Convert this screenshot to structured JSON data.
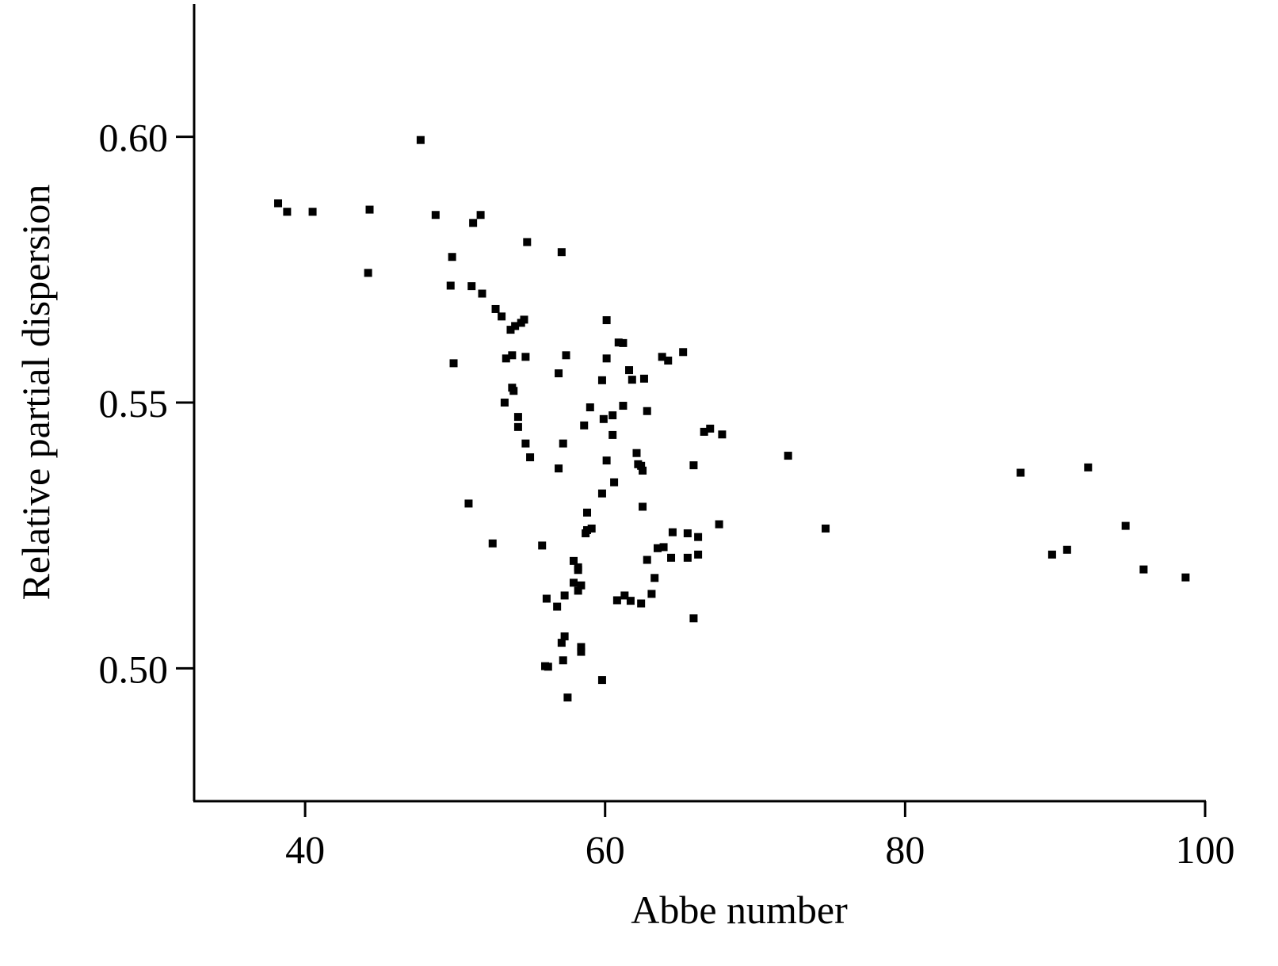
{
  "chart_data": {
    "type": "scatter",
    "xlabel": "Abbe number",
    "ylabel": "Relative partial dispersion",
    "color": "#000000",
    "x": [
      38.2,
      38.8,
      40.5,
      44.3,
      47.7,
      44.2,
      48.7,
      51.7,
      51.2,
      54.8,
      57.1,
      49.8,
      49.7,
      51.1,
      51.8,
      52.7,
      53.1,
      53.7,
      54.0,
      54.4,
      54.6,
      60.1,
      60.9,
      61.2,
      49.9,
      53.4,
      53.8,
      54.7,
      57.4,
      56.9,
      60.1,
      59.8,
      61.6,
      61.8,
      62.6,
      63.8,
      64.2,
      65.2,
      53.8,
      53.9,
      53.3,
      59.0,
      61.2,
      62.8,
      54.2,
      54.2,
      59.9,
      60.5,
      58.6,
      60.5,
      57.2,
      54.7,
      55.0,
      56.9,
      60.1,
      62.1,
      62.2,
      62.4,
      62.5,
      60.6,
      65.9,
      66.6,
      67.0,
      67.8,
      72.2,
      59.8,
      50.9,
      62.5,
      58.8,
      87.7,
      92.2,
      74.7,
      67.6,
      65.5,
      64.5,
      66.2,
      66.2,
      65.5,
      64.4,
      63.9,
      63.5,
      62.8,
      58.8,
      59.1,
      58.7,
      52.5,
      55.8,
      57.9,
      58.2,
      58.2,
      57.9,
      58.4,
      58.2,
      63.3,
      63.1,
      61.3,
      61.7,
      62.4,
      60.8,
      57.3,
      56.1,
      56.8,
      65.9,
      57.3,
      57.1,
      58.4,
      58.4,
      57.2,
      56.0,
      56.2,
      59.8,
      57.5,
      89.8,
      90.8,
      94.7,
      95.9,
      98.7
    ],
    "values": [
      0.5875,
      0.5859,
      0.5859,
      0.5863,
      0.5994,
      0.5744,
      0.5853,
      0.5853,
      0.5838,
      0.5802,
      0.5783,
      0.5774,
      0.572,
      0.5719,
      0.5705,
      0.5676,
      0.5662,
      0.5637,
      0.5644,
      0.565,
      0.5656,
      0.5655,
      0.5613,
      0.5612,
      0.5574,
      0.5583,
      0.5589,
      0.5586,
      0.5589,
      0.5555,
      0.5583,
      0.5542,
      0.5561,
      0.5543,
      0.5545,
      0.5586,
      0.5579,
      0.5595,
      0.5528,
      0.5522,
      0.55,
      0.5491,
      0.5494,
      0.5484,
      0.5473,
      0.5454,
      0.5469,
      0.5476,
      0.5457,
      0.5439,
      0.5423,
      0.5423,
      0.5397,
      0.5376,
      0.5391,
      0.5405,
      0.5384,
      0.5381,
      0.5372,
      0.535,
      0.5382,
      0.5445,
      0.5451,
      0.544,
      0.54,
      0.5329,
      0.531,
      0.5304,
      0.5293,
      0.5368,
      0.5378,
      0.5263,
      0.5271,
      0.5254,
      0.5256,
      0.5247,
      0.5214,
      0.5208,
      0.5208,
      0.5228,
      0.5226,
      0.5204,
      0.526,
      0.5263,
      0.5254,
      0.5235,
      0.5231,
      0.5202,
      0.519,
      0.5185,
      0.5161,
      0.5156,
      0.5146,
      0.517,
      0.514,
      0.5137,
      0.5127,
      0.5122,
      0.5128,
      0.5137,
      0.5131,
      0.5116,
      0.5094,
      0.506,
      0.5048,
      0.504,
      0.5031,
      0.5015,
      0.5004,
      0.5003,
      0.4978,
      0.4945,
      0.5214,
      0.5223,
      0.5268,
      0.5186,
      0.5171
    ],
    "xlim": [
      32.6,
      100
    ],
    "xticks": [
      40,
      60,
      80,
      100
    ],
    "ylim": [
      0.475,
      0.625
    ],
    "yticks": [
      {
        "value": 0.5,
        "label": "0.50"
      },
      {
        "value": 0.55,
        "label": "0.55"
      },
      {
        "value": 0.6,
        "label": "0.60"
      }
    ]
  }
}
